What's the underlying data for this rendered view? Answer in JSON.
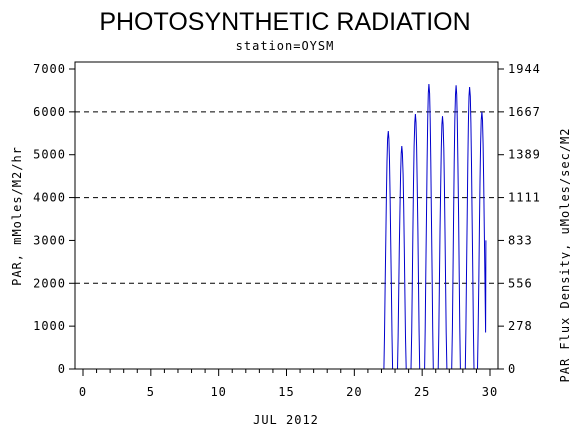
{
  "chart_data": {
    "type": "line",
    "title": "PHOTOSYNTHETIC RADIATION",
    "subtitle": "station=OYSM",
    "xlabel": "JUL 2012",
    "ylabel": "PAR, mMoles/M2/hr",
    "y2label": "PAR Flux Density, uMoles/sec/M2",
    "xlim": [
      0,
      30
    ],
    "ylim": [
      0,
      7000
    ],
    "y2lim": [
      0,
      1944
    ],
    "x_ticks": [
      0,
      5,
      10,
      15,
      20,
      25,
      30
    ],
    "x_tick_labels": [
      "0",
      "5",
      "10",
      "15",
      "20",
      "25",
      "30"
    ],
    "y_ticks": [
      0,
      1000,
      2000,
      3000,
      4000,
      5000,
      6000,
      7000
    ],
    "y_tick_labels": [
      "0",
      "1000",
      "2000",
      "3000",
      "4000",
      "5000",
      "6000",
      "7000"
    ],
    "y2_tick_labels": [
      "0",
      "278",
      "556",
      "833",
      "1111",
      "1389",
      "1667",
      "1944"
    ],
    "gridlines_y": [
      2000,
      4000,
      6000
    ],
    "grid_style": "dashed",
    "line_color": "#0000cc",
    "daily_peaks": [
      {
        "day": 22.5,
        "value": 5550
      },
      {
        "day": 23.5,
        "value": 5200
      },
      {
        "day": 24.5,
        "value": 5950
      },
      {
        "day": 25.5,
        "value": 6650
      },
      {
        "day": 26.5,
        "value": 5900
      },
      {
        "day": 27.5,
        "value": 6620
      },
      {
        "day": 28.5,
        "value": 6580
      },
      {
        "day": 29.4,
        "value": 6000
      }
    ],
    "series_end": {
      "day": 29.7,
      "value": 3000
    }
  }
}
